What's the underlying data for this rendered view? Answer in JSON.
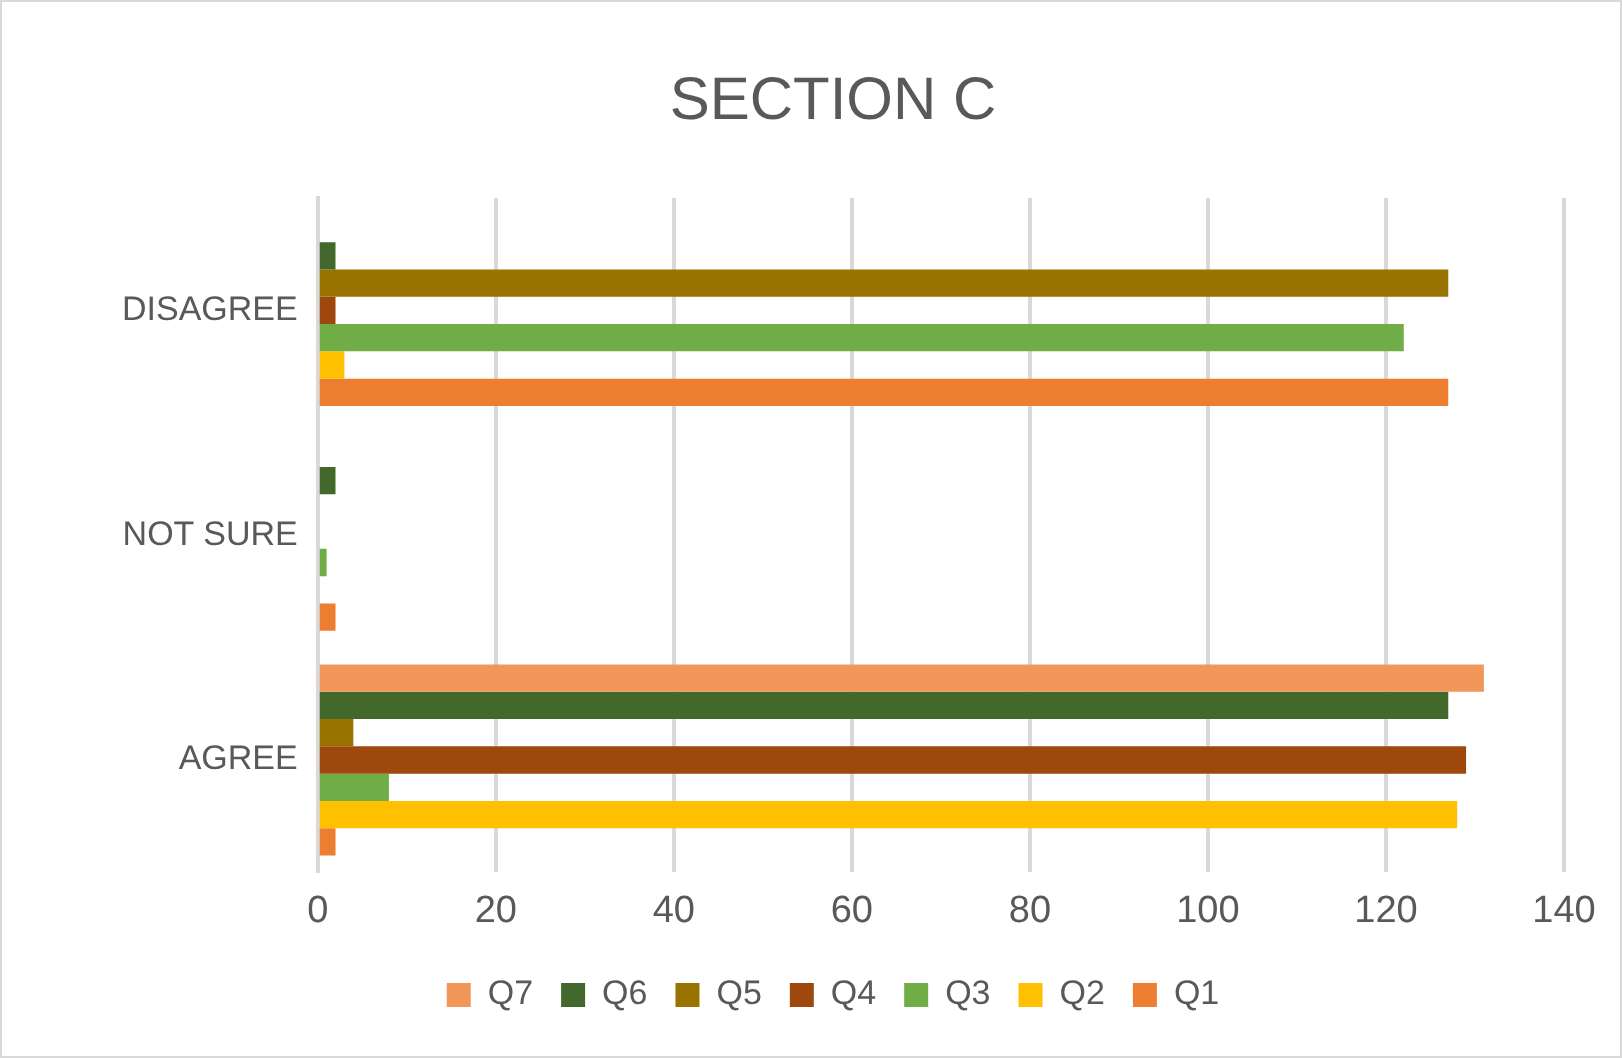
{
  "chart_data": {
    "type": "bar",
    "title": "SECTION C",
    "orientation": "horizontal",
    "categories": [
      "DISAGREE",
      "NOT SURE",
      "AGREE"
    ],
    "series": [
      {
        "name": "Q7",
        "color": "#f1975a",
        "values": [
          null,
          null,
          131
        ]
      },
      {
        "name": "Q6",
        "color": "#43682b",
        "values": [
          2,
          2,
          127
        ]
      },
      {
        "name": "Q5",
        "color": "#997300",
        "values": [
          127,
          null,
          4
        ]
      },
      {
        "name": "Q4",
        "color": "#9e480e",
        "values": [
          2,
          null,
          129
        ]
      },
      {
        "name": "Q3",
        "color": "#70ad47",
        "values": [
          122,
          1,
          8
        ]
      },
      {
        "name": "Q2",
        "color": "#ffc000",
        "values": [
          3,
          null,
          128
        ]
      },
      {
        "name": "Q1",
        "color": "#ed7d31",
        "values": [
          127,
          2,
          2
        ]
      }
    ],
    "xlim": [
      0,
      140
    ],
    "xticks": [
      0,
      20,
      40,
      60,
      80,
      100,
      120,
      140
    ],
    "grid": "x",
    "legend": "bottom"
  }
}
